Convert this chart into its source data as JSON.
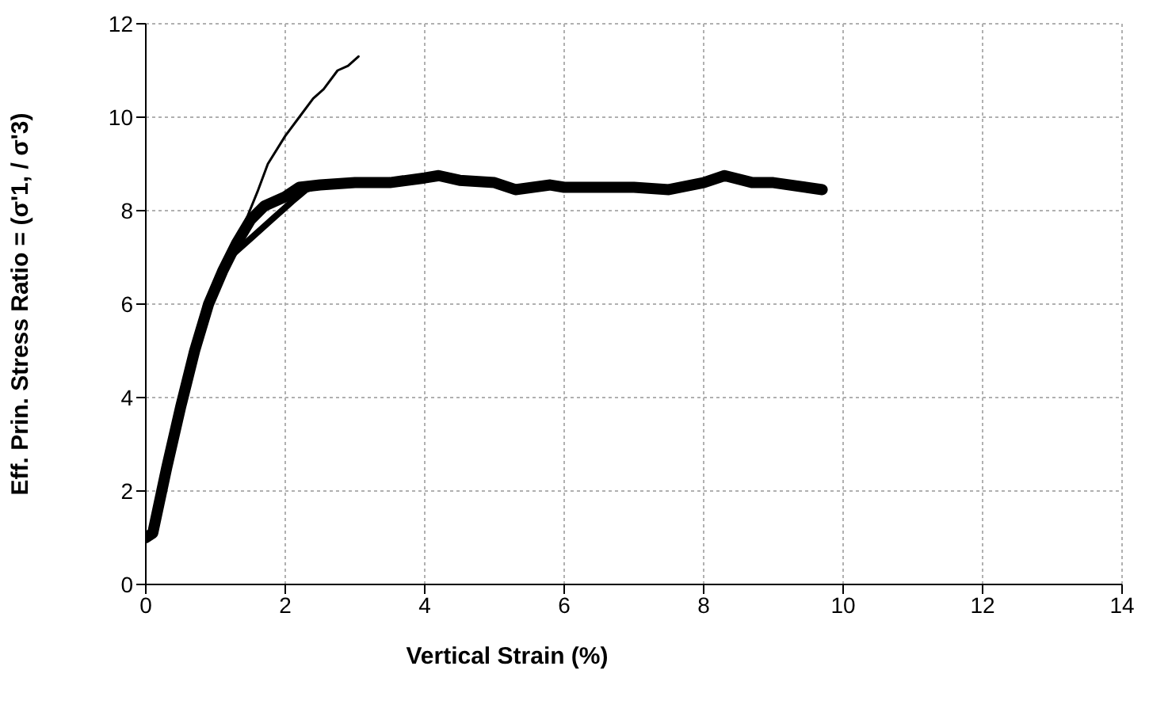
{
  "chart_data": {
    "type": "line",
    "xlabel": "Vertical Strain (%)",
    "ylabel": "Eff. Prin. Stress Ratio = (σ'1, / σ'3)",
    "xlim": [
      0,
      14
    ],
    "xticks": [
      0,
      2,
      4,
      6,
      8,
      10,
      12,
      14
    ],
    "ylim": [
      0,
      12
    ],
    "yticks": [
      0,
      2,
      4,
      6,
      8,
      10,
      12
    ],
    "grid": true,
    "marker": "none",
    "line_style": "solid",
    "series": [
      {
        "color": "#000000",
        "x": [
          0,
          0.1,
          0.3,
          0.5,
          0.7,
          0.9,
          1.1,
          1.3,
          1.5,
          1.7,
          2.0,
          2.2,
          2.5,
          3.0,
          3.5,
          4.0,
          4.2,
          4.5,
          5.0,
          5.3,
          5.8,
          6.0,
          7.0,
          7.5,
          8.0,
          8.3,
          8.7,
          9.0,
          9.7
        ],
        "values": [
          1.0,
          1.1,
          2.5,
          3.8,
          5.0,
          6.0,
          6.7,
          7.3,
          7.8,
          8.1,
          8.3,
          8.5,
          8.55,
          8.6,
          8.6,
          8.7,
          8.75,
          8.65,
          8.6,
          8.45,
          8.55,
          8.5,
          8.5,
          8.45,
          8.6,
          8.75,
          8.6,
          8.6,
          8.45
        ]
      },
      {
        "color": "#000000",
        "x": [
          1.1,
          1.2,
          1.5,
          1.8,
          2.1,
          2.3,
          2.5
        ],
        "values": [
          6.7,
          7.0,
          7.4,
          7.8,
          8.2,
          8.45,
          8.55
        ]
      },
      {
        "color": "#000000",
        "x": [
          1.3,
          1.6,
          1.75,
          2.0,
          2.2,
          2.4,
          2.55,
          2.75,
          2.9,
          3.05
        ],
        "values": [
          7.3,
          8.4,
          9.0,
          9.6,
          10.0,
          10.4,
          10.6,
          11.0,
          11.1,
          11.3
        ]
      }
    ]
  }
}
